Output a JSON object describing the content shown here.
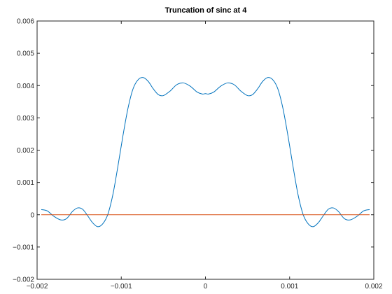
{
  "chart_data": {
    "type": "line",
    "title": "Truncation of sinc at 4",
    "xlabel": "",
    "ylabel": "",
    "xlim": [
      -0.002,
      0.002
    ],
    "ylim": [
      -0.002,
      0.006
    ],
    "grid": false,
    "x_ticks": [
      -0.002,
      -0.001,
      0,
      0.001,
      0.002
    ],
    "x_tick_labels": [
      "−0.002",
      "−0.001",
      "0",
      "0.001",
      "0.002"
    ],
    "y_ticks": [
      -0.002,
      -0.001,
      0,
      0.001,
      0.002,
      0.003,
      0.004,
      0.005,
      0.006
    ],
    "y_tick_labels": [
      "−0.002",
      "−0.001",
      "0",
      "0.001",
      "0.002",
      "0.003",
      "0.004",
      "0.005",
      "0.006"
    ],
    "series": [
      {
        "color": "#0072BD",
        "x": [
          -0.00195,
          -0.00188,
          -0.0018,
          -0.00172,
          -0.00165,
          -0.00158,
          -0.00152,
          -0.00146,
          -0.0014,
          -0.00134,
          -0.00128,
          -0.00122,
          -0.00116,
          -0.0011,
          -0.00104,
          -0.00098,
          -0.00092,
          -0.00086,
          -0.0008,
          -0.00074,
          -0.00068,
          -0.00062,
          -0.00056,
          -0.0005,
          -0.00042,
          -0.00034,
          -0.00026,
          -0.00018,
          -0.0001,
          -4e-05,
          0,
          4e-05,
          0.0001,
          0.00018,
          0.00026,
          0.00034,
          0.00042,
          0.0005,
          0.00056,
          0.00062,
          0.00068,
          0.00074,
          0.0008,
          0.00086,
          0.00092,
          0.00098,
          0.00104,
          0.0011,
          0.00116,
          0.00122,
          0.00128,
          0.00134,
          0.0014,
          0.00146,
          0.00152,
          0.00158,
          0.00165,
          0.00172,
          0.0018,
          0.00188,
          0.00195
        ],
        "y": [
          0.00016,
          0.00012,
          -5e-05,
          -0.00016,
          -0.00012,
          0.0001,
          0.00021,
          0.00017,
          -3e-05,
          -0.00025,
          -0.00037,
          -0.00028,
          1e-05,
          0.00062,
          0.0015,
          0.00245,
          0.0033,
          0.0039,
          0.00418,
          0.00425,
          0.00413,
          0.0039,
          0.00372,
          0.00369,
          0.00383,
          0.00403,
          0.00408,
          0.00398,
          0.0038,
          0.00374,
          0.00375,
          0.00374,
          0.0038,
          0.00398,
          0.00408,
          0.00403,
          0.00383,
          0.00369,
          0.00372,
          0.0039,
          0.00413,
          0.00425,
          0.00418,
          0.0039,
          0.0033,
          0.00245,
          0.0015,
          0.00062,
          1e-05,
          -0.00028,
          -0.00037,
          -0.00025,
          -3e-05,
          0.00017,
          0.00021,
          0.0001,
          -0.00012,
          -0.00016,
          -5e-05,
          0.00012,
          0.00016
        ]
      },
      {
        "color": "#D95319",
        "x": [
          -0.00195,
          0.00195
        ],
        "y": [
          0,
          0
        ]
      }
    ]
  }
}
